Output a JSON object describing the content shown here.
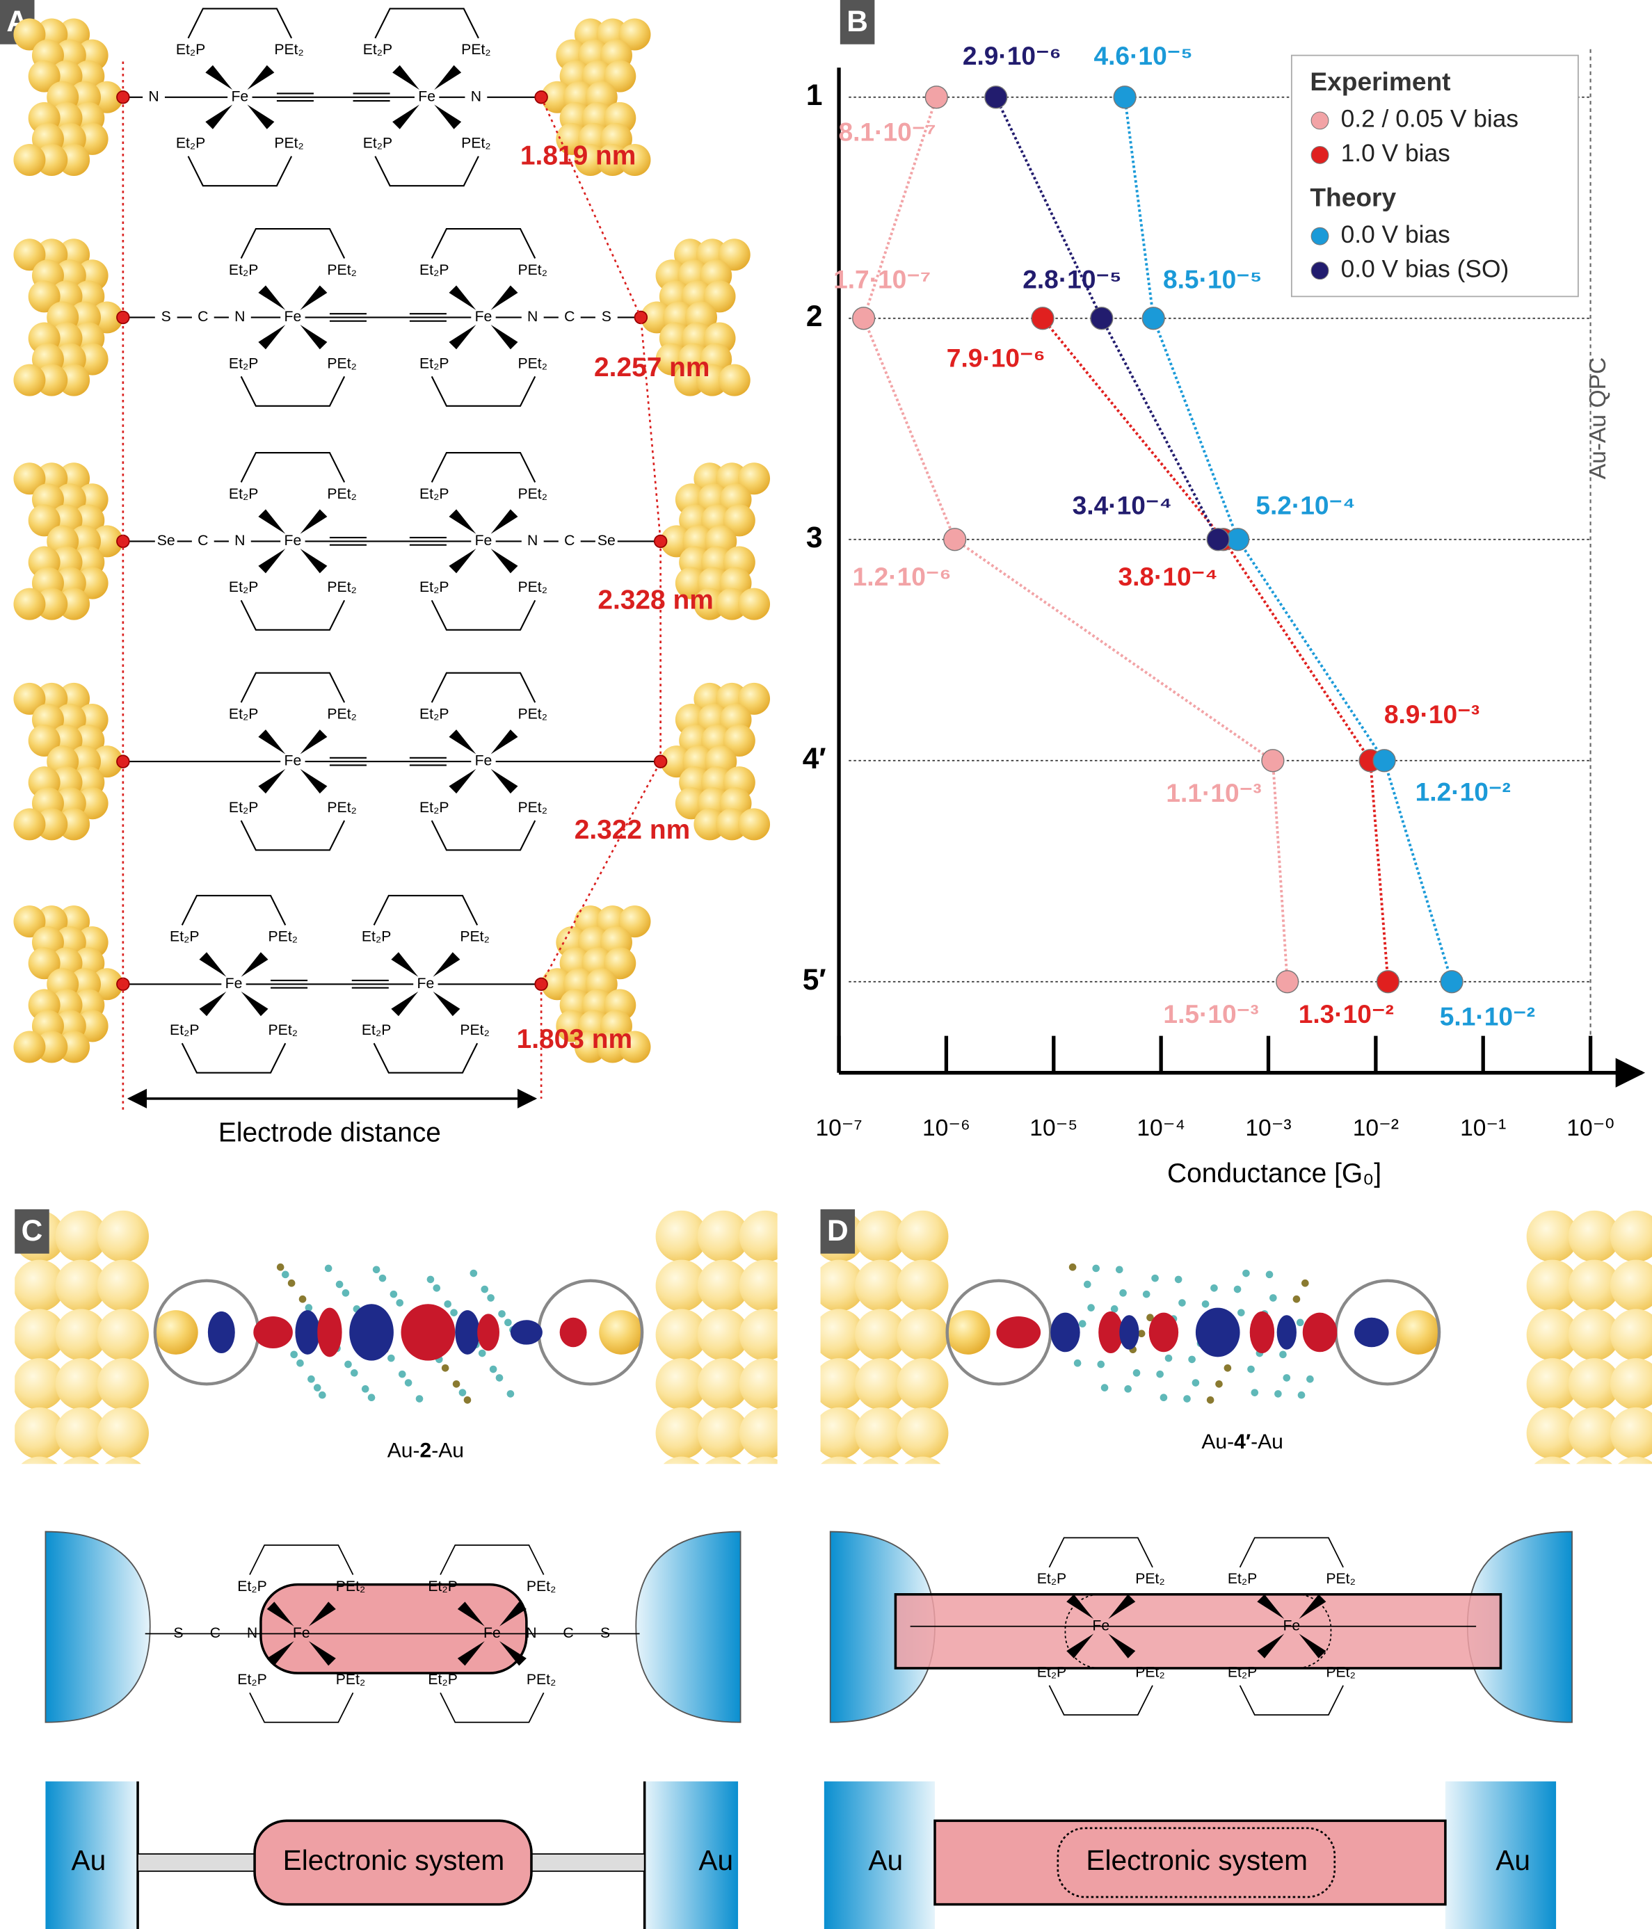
{
  "panel_a": {
    "label": "A",
    "metal": "Fe",
    "ligand_left": "Et₂P",
    "ligand_right": "PEt₂",
    "molecules": [
      {
        "left": [
          "N"
        ],
        "right": [
          "N"
        ],
        "distance": "1.819 nm"
      },
      {
        "left": [
          "S",
          "C",
          "N"
        ],
        "right": [
          "N",
          "C",
          "S"
        ],
        "distance": "2.257 nm"
      },
      {
        "left": [
          "Se",
          "C",
          "N"
        ],
        "right": [
          "N",
          "C",
          "Se"
        ],
        "distance": "2.328 nm"
      },
      {
        "left": [],
        "right": [],
        "distance": "2.322 nm"
      },
      {
        "left": [],
        "right": [],
        "distance": "1.803 nm"
      }
    ],
    "caption": "Electrode distance"
  },
  "chart_data": {
    "type": "line",
    "panel_label": "B",
    "categories": [
      "1",
      "2",
      "3",
      "4′",
      "5′"
    ],
    "xscale": "log",
    "xlim": [
      1e-07,
      1
    ],
    "xticks": [
      {
        "value": 1e-07,
        "label": "10⁻⁷"
      },
      {
        "value": 1e-06,
        "label": "10⁻⁶"
      },
      {
        "value": 1e-05,
        "label": "10⁻⁵"
      },
      {
        "value": 0.0001,
        "label": "10⁻⁴"
      },
      {
        "value": 0.001,
        "label": "10⁻³"
      },
      {
        "value": 0.01,
        "label": "10⁻²"
      },
      {
        "value": 0.1,
        "label": "10⁻¹"
      },
      {
        "value": 1,
        "label": "10⁻⁰"
      }
    ],
    "xlabel": "Conductance [G₀]",
    "legend_titles": [
      "Experiment",
      "Theory"
    ],
    "annotation": "Au-Au QPC",
    "series": [
      {
        "name": "0.2 / 0.05 V bias",
        "color": "#f2a3a6",
        "values": [
          8.1e-07,
          1.7e-07,
          1.2e-06,
          0.0011,
          0.0015
        ],
        "value_labels": [
          "8.1·10⁻⁷",
          "1.7·10⁻⁷",
          "1.2·10⁻⁶",
          "1.1·10⁻³",
          "1.5·10⁻³"
        ]
      },
      {
        "name": "1.0 V bias",
        "color": "#e0201f",
        "values": [
          null,
          7.9e-06,
          0.00038,
          0.0089,
          0.013
        ],
        "value_labels": [
          null,
          "7.9·10⁻⁶",
          "3.8·10⁻⁴",
          "8.9·10⁻³",
          "1.3·10⁻²"
        ]
      },
      {
        "name": "0.0 V bias",
        "color": "#1b9ad8",
        "values": [
          4.6e-05,
          8.5e-05,
          0.00052,
          0.012,
          0.051
        ],
        "value_labels": [
          "4.6·10⁻⁵",
          "8.5·10⁻⁵",
          "5.2·10⁻⁴",
          "1.2·10⁻²",
          "5.1·10⁻²"
        ]
      },
      {
        "name": "0.0 V bias (SO)",
        "color": "#221c6e",
        "values": [
          2.9e-06,
          2.8e-05,
          0.00034,
          null,
          null
        ],
        "value_labels": [
          "2.9·10⁻⁶",
          "2.8·10⁻⁵",
          "3.4·10⁻⁴",
          null,
          null
        ]
      }
    ]
  },
  "panel_c": {
    "label": "C",
    "caption": [
      "Au-",
      "2",
      "-Au"
    ],
    "left": [
      "S",
      "C",
      "N"
    ],
    "right": [
      "N",
      "C",
      "S"
    ],
    "electrode": "Au",
    "system": "Electronic system"
  },
  "panel_d": {
    "label": "D",
    "caption": [
      "Au-",
      "4′",
      "-Au"
    ],
    "electrode": "Au",
    "system": "Electronic system"
  }
}
